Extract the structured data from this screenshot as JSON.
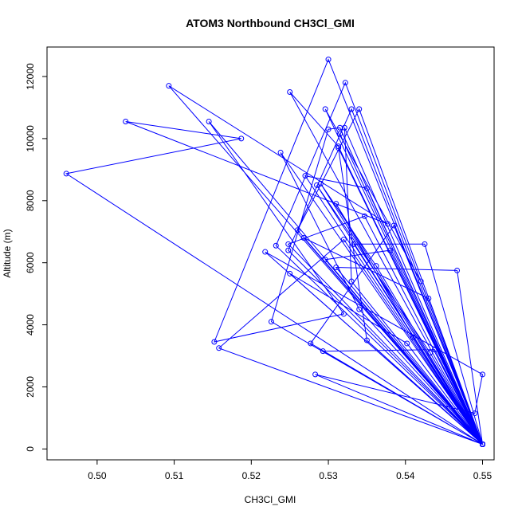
{
  "chart_data": {
    "type": "line",
    "title": "ATOM3 Northbound CH3Cl_GMI",
    "xlabel": "CH3Cl_GMI",
    "ylabel": "Altitude (m)",
    "xlim": [
      0.4935,
      0.5515
    ],
    "ylim": [
      -350,
      12950
    ],
    "xticks": [
      0.5,
      0.51,
      0.52,
      0.53,
      0.54,
      0.55
    ],
    "xtick_labels": [
      "0.50",
      "0.51",
      "0.52",
      "0.53",
      "0.54",
      "0.55"
    ],
    "yticks": [
      0,
      2000,
      4000,
      6000,
      8000,
      10000,
      12000
    ],
    "ytick_labels": [
      "0",
      "2000",
      "4000",
      "6000",
      "8000",
      "10000",
      "12000"
    ],
    "grid": false,
    "marker": "open-circle",
    "color": "#0000ff",
    "series": [
      {
        "x": [
          0.55,
          0.496,
          0.5187,
          0.5037,
          0.5377,
          0.5093,
          0.55,
          0.5145,
          0.532,
          0.5152,
          0.53,
          0.55,
          0.525,
          0.5313,
          0.55,
          0.5283,
          0.549,
          0.55,
          0.5218,
          0.55,
          0.5226,
          0.53,
          0.5315,
          0.55,
          0.5232,
          0.5322,
          0.55,
          0.526,
          0.534,
          0.55,
          0.5248,
          0.533,
          0.55,
          0.5277,
          0.5385,
          0.55,
          0.5238,
          0.534,
          0.55,
          0.527,
          0.535,
          0.55,
          0.529,
          0.5362,
          0.55,
          0.5315,
          0.55,
          0.5296,
          0.542,
          0.55,
          0.5321,
          0.533,
          0.55,
          0.5248,
          0.5347,
          0.55,
          0.531,
          0.541,
          0.55,
          0.5296,
          0.538,
          0.55,
          0.5333,
          0.5425,
          0.55,
          0.5313,
          0.535,
          0.55,
          0.5268,
          0.543,
          0.55,
          0.5285,
          0.5432,
          0.55,
          0.5158,
          0.532,
          0.55,
          0.5293,
          0.5438,
          0.55,
          0.525,
          0.5402,
          0.55,
          0.531,
          0.5467,
          0.55
        ],
        "y": [
          150,
          8870,
          10000,
          10550,
          7250,
          11700,
          150,
          10550,
          4350,
          3450,
          12550,
          150,
          11500,
          9750,
          150,
          2400,
          1150,
          2400,
          6350,
          150,
          4100,
          10300,
          10350,
          150,
          6550,
          11800,
          150,
          7050,
          10950,
          150,
          6400,
          10950,
          150,
          3400,
          7200,
          150,
          9550,
          4500,
          150,
          8800,
          8400,
          150,
          8550,
          5900,
          150,
          10150,
          150,
          10950,
          5400,
          150,
          10350,
          5400,
          150,
          6600,
          7500,
          150,
          7900,
          3600,
          150,
          6100,
          6400,
          150,
          6600,
          6600,
          150,
          9700,
          3500,
          150,
          6800,
          4850,
          150,
          8500,
          3100,
          150,
          3250,
          6750,
          150,
          3150,
          3200,
          150,
          5650,
          3400,
          150,
          5850,
          5750,
          150
        ]
      }
    ]
  }
}
